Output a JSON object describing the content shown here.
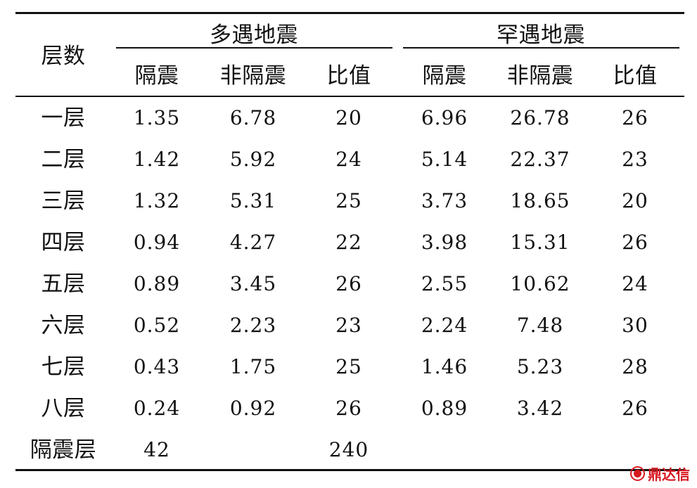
{
  "table": {
    "row_header": "层数",
    "groups": [
      "多遇地震",
      "罕遇地震"
    ],
    "columns": [
      "隔震",
      "非隔震",
      "比值",
      "隔震",
      "非隔震",
      "比值"
    ],
    "rows": [
      {
        "label": "一层",
        "cells": [
          "1.35",
          "6.78",
          "20",
          "6.96",
          "26.78",
          "26"
        ]
      },
      {
        "label": "二层",
        "cells": [
          "1.42",
          "5.92",
          "24",
          "5.14",
          "22.37",
          "23"
        ]
      },
      {
        "label": "三层",
        "cells": [
          "1.32",
          "5.31",
          "25",
          "3.73",
          "18.65",
          "20"
        ]
      },
      {
        "label": "四层",
        "cells": [
          "0.94",
          "4.27",
          "22",
          "3.98",
          "15.31",
          "26"
        ]
      },
      {
        "label": "五层",
        "cells": [
          "0.89",
          "3.45",
          "26",
          "2.55",
          "10.62",
          "24"
        ]
      },
      {
        "label": "六层",
        "cells": [
          "0.52",
          "2.23",
          "23",
          "2.24",
          "7.48",
          "30"
        ]
      },
      {
        "label": "七层",
        "cells": [
          "0.43",
          "1.75",
          "25",
          "1.46",
          "5.23",
          "28"
        ]
      },
      {
        "label": "八层",
        "cells": [
          "0.24",
          "0.92",
          "26",
          "0.89",
          "3.42",
          "26"
        ]
      },
      {
        "label": "隔震层",
        "cells": [
          "42",
          "",
          "240",
          "",
          "",
          ""
        ]
      }
    ]
  },
  "watermark": {
    "text": "鼎达信",
    "color": "#d71920"
  }
}
